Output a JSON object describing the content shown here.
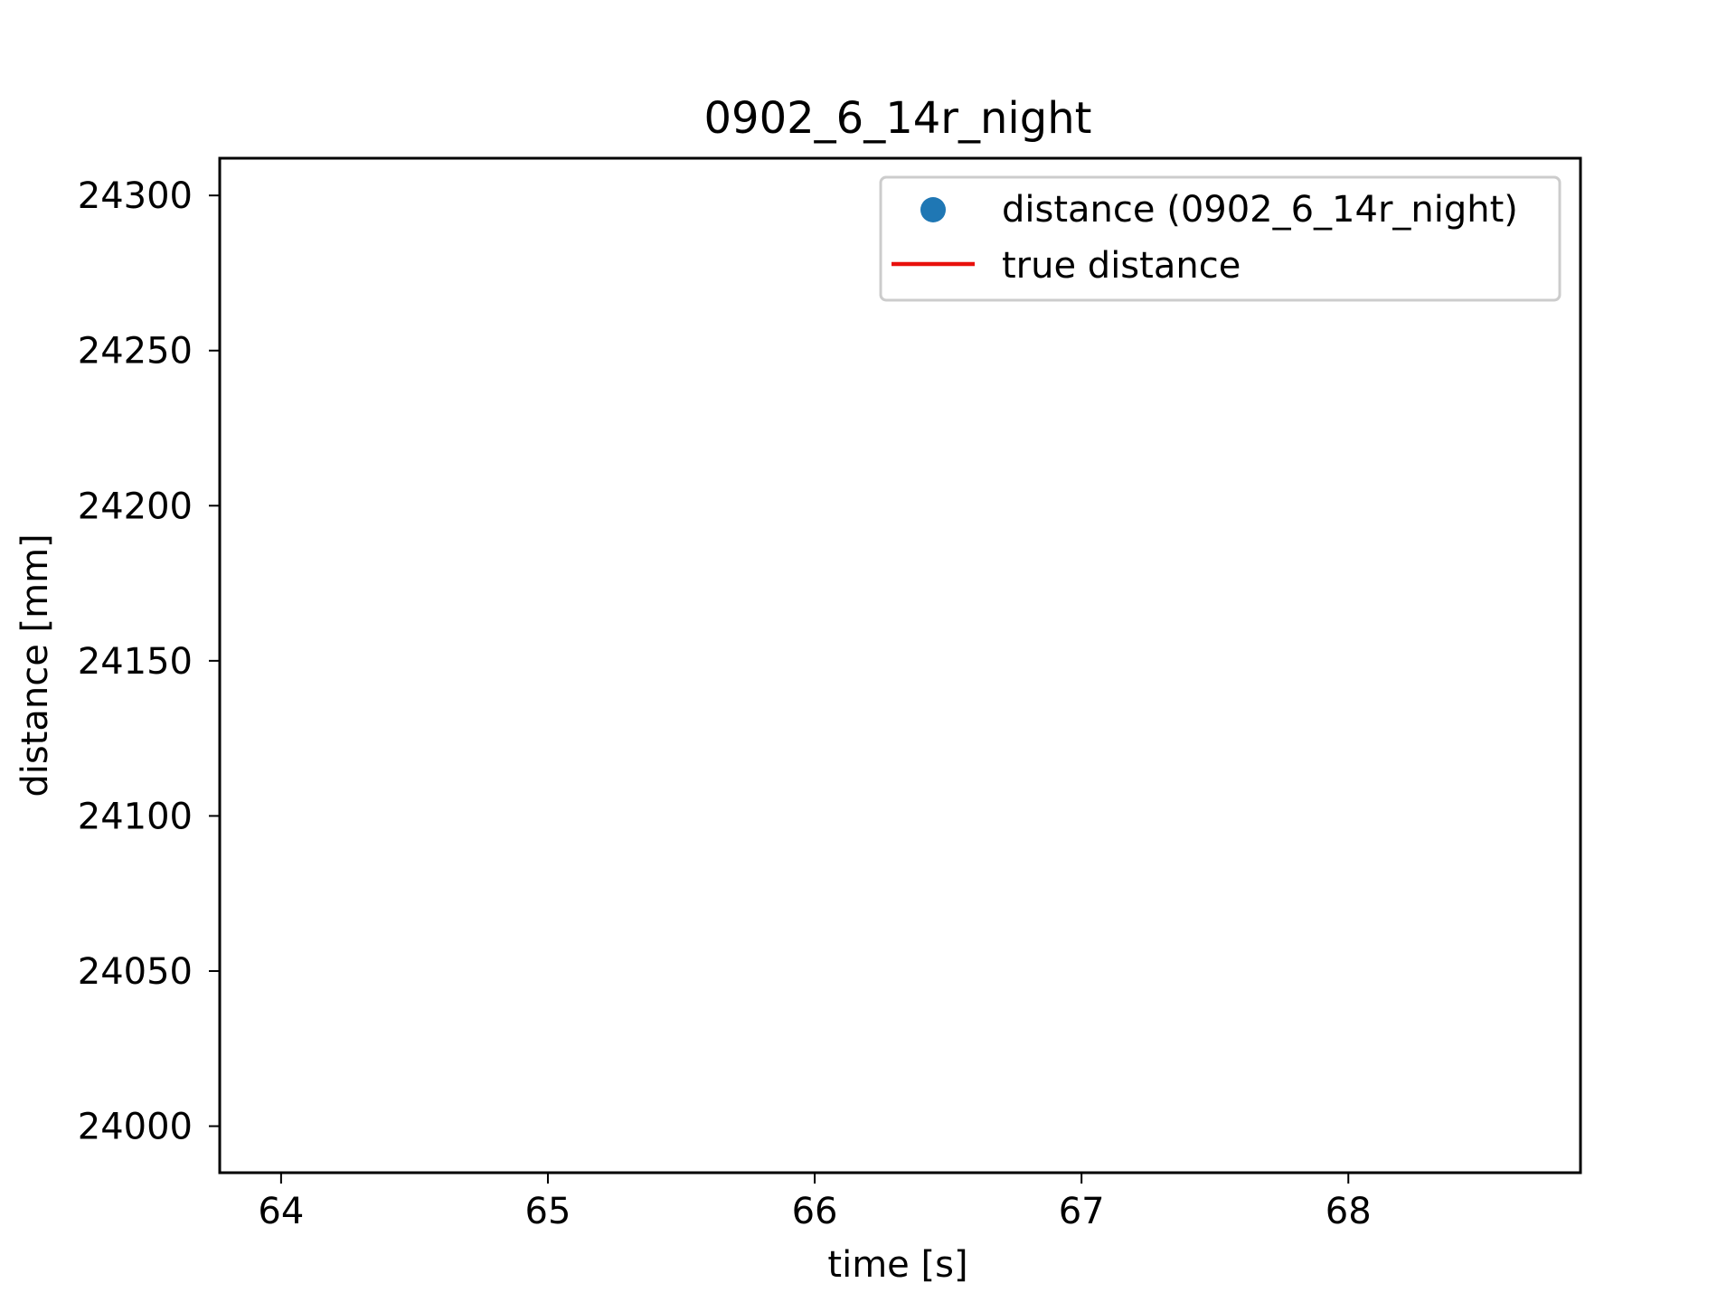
{
  "chart_data": {
    "type": "scatter",
    "title": "0902_6_14r_night",
    "xlabel": "time [s]",
    "ylabel": "distance [mm]",
    "xlim": [
      63.77,
      68.87
    ],
    "ylim": [
      23985,
      24312
    ],
    "xticks": [
      64,
      65,
      66,
      67,
      68
    ],
    "yticks": [
      24000,
      24050,
      24100,
      24150,
      24200,
      24250,
      24300
    ],
    "grid": false,
    "legend_position": "top-right",
    "series": [
      {
        "name": "distance (0902_6_14r_night)",
        "kind": "scatter",
        "color": "#1f77b4",
        "x": [],
        "y": []
      },
      {
        "name": "true distance",
        "kind": "line",
        "color": "#e8100c",
        "x": [],
        "y": []
      }
    ]
  }
}
